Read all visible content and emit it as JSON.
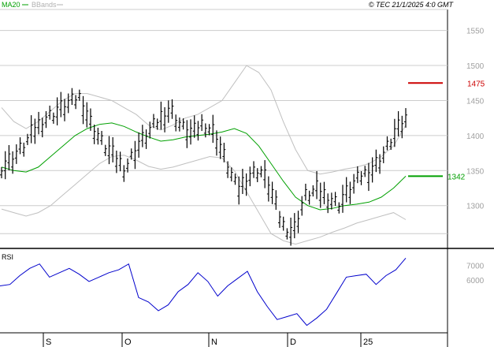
{
  "header": {
    "legend": [
      {
        "label": "MA20",
        "color": "#00a000"
      },
      {
        "label": "BBands",
        "color": "#b0b0b0"
      }
    ],
    "copyright": "© TEC 21/1/2025 4:0 GMT"
  },
  "colors": {
    "price": "#000000",
    "ma": "#00a000",
    "bands": "#c0c0c0",
    "rsi": "#0000cc",
    "resistance": "#cc0000",
    "support": "#00a000",
    "grid": "#cccccc",
    "axis_text": "#a0a0a0"
  },
  "markers": {
    "resistance": {
      "label": "1475",
      "value": 1475
    },
    "support": {
      "label": "1342",
      "value": 1342
    }
  },
  "rsi_panel": {
    "label": "RSI"
  },
  "chart_data": {
    "type": "line",
    "title": "",
    "price_axis": {
      "ticks": [
        "1550",
        "1500",
        "1450",
        "1400",
        "1350",
        "1300"
      ],
      "ylim": [
        1240,
        1580
      ]
    },
    "rsi_axis": {
      "ticks": [
        "7000",
        "6000"
      ],
      "ylim": [
        2500,
        8000
      ]
    },
    "x_ticks": [
      "S",
      "O",
      "N",
      "D",
      "25"
    ],
    "series": [
      {
        "name": "MA20",
        "values": [
          1355,
          1350,
          1348,
          1355,
          1370,
          1385,
          1400,
          1410,
          1416,
          1418,
          1413,
          1405,
          1398,
          1392,
          1394,
          1398,
          1400,
          1402,
          1405,
          1410,
          1403,
          1385,
          1360,
          1335,
          1312,
          1300,
          1294,
          1296,
          1300,
          1302,
          1305,
          1312,
          1325,
          1342
        ]
      },
      {
        "name": "BBands",
        "values": [
          1440,
          1420,
          1410,
          1420,
          1435,
          1450,
          1460,
          1460,
          1455,
          1450,
          1440,
          1430,
          1415,
          1408,
          1415,
          1425,
          1430,
          1440,
          1450,
          1475,
          1500,
          1490,
          1465,
          1420,
          1380,
          1350,
          1345,
          1348,
          1352,
          1355,
          1360,
          1370,
          1385,
          1415
        ]
      },
      {
        "name": "",
        "values": [
          1295,
          1290,
          1285,
          1290,
          1300,
          1315,
          1330,
          1345,
          1360,
          1370,
          1372,
          1365,
          1356,
          1352,
          1355,
          1360,
          1365,
          1370,
          1368,
          1350,
          1320,
          1290,
          1260,
          1250,
          1245,
          1250,
          1255,
          1262,
          1268,
          1275,
          1280,
          1285,
          1290,
          1280
        ]
      },
      {
        "name": "",
        "values": [
          1355,
          1368,
          1385,
          1410,
          1425,
          1435,
          1445,
          1455,
          1415,
          1388,
          1370,
          1352,
          1382,
          1402,
          1422,
          1438,
          1412,
          1402,
          1418,
          1402,
          1362,
          1322,
          1342,
          1352,
          1322,
          1272,
          1262,
          1312,
          1322,
          1312,
          1302,
          1322,
          1342,
          1352,
          1372,
          1402,
          1422
        ]
      },
      {
        "name": "",
        "values": [
          5600,
          5700,
          6300,
          6800,
          7100,
          6200,
          6500,
          6800,
          6400,
          5900,
          6200,
          6500,
          6700,
          7100,
          4800,
          4500,
          3900,
          4300,
          5200,
          5700,
          6500,
          5900,
          4900,
          5600,
          6100,
          6600,
          5200,
          4200,
          3300,
          3500,
          3700,
          2900,
          3400,
          4000,
          5100,
          6200,
          6300,
          6400,
          5700,
          6300,
          6700,
          7500
        ]
      }
    ]
  }
}
